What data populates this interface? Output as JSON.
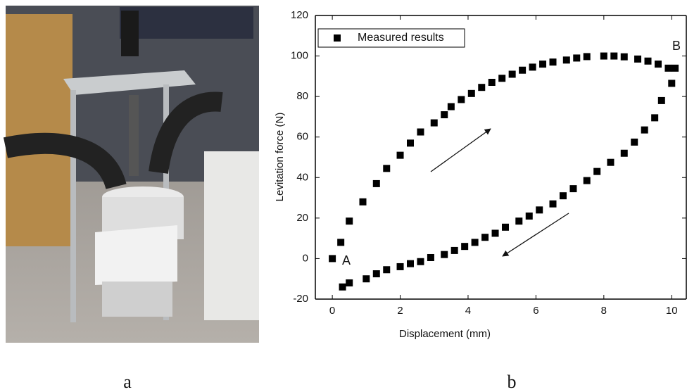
{
  "chart_data": {
    "type": "scatter",
    "x_label": "Displacement (mm)",
    "y_label": "Levitation force (N)",
    "xlim": [
      -0.5,
      10.43
    ],
    "xticks": [
      0,
      2,
      4,
      6,
      8,
      10
    ],
    "ylim": [
      -20,
      120
    ],
    "yticks": [
      -20,
      0,
      20,
      40,
      60,
      80,
      100,
      120
    ],
    "legend": "upper left",
    "annotations": [
      "A",
      "B"
    ],
    "x": [
      0,
      0.25,
      0.5,
      0.9,
      1.3,
      1.6,
      2,
      2.3,
      2.6,
      3,
      3.3,
      3.5,
      3.8,
      4.1,
      4.4,
      4.7,
      5,
      5.3,
      5.6,
      5.9,
      6.2,
      6.5,
      6.9,
      7.2,
      7.5,
      8,
      8.3,
      8.6,
      9,
      9.3,
      9.6,
      9.9,
      10.1,
      10,
      9.7,
      9.5,
      9.2,
      8.9,
      8.6,
      8.2,
      7.8,
      7.5,
      7.1,
      6.8,
      6.5,
      6.1,
      5.8,
      5.5,
      5.1,
      4.8,
      4.5,
      4.2,
      3.9,
      3.6,
      3.3,
      2.9,
      2.6,
      2.3,
      2,
      1.6,
      1.3,
      1,
      0.5,
      0.3
    ],
    "series": [
      {
        "name": "Measured results",
        "color": "#000000",
        "values": [
          0,
          8,
          18.5,
          28,
          37,
          44.5,
          51,
          57,
          62.5,
          67,
          71,
          75,
          78.5,
          81.5,
          84.5,
          87,
          89,
          91,
          93,
          94.5,
          96,
          97,
          98,
          99,
          99.7,
          100,
          100,
          99.6,
          98.5,
          97.5,
          96,
          94,
          94,
          86.5,
          78,
          69.5,
          63.5,
          57.5,
          52,
          47.5,
          43,
          38.5,
          34.5,
          31,
          27,
          24,
          21,
          18.5,
          15.5,
          12.5,
          10.5,
          8,
          6,
          4,
          2,
          0.5,
          -1.5,
          -2.5,
          -4,
          -5.5,
          -7.5,
          -10,
          -12,
          -14
        ]
      }
    ]
  },
  "panel_labels": [
    "a",
    "b"
  ]
}
